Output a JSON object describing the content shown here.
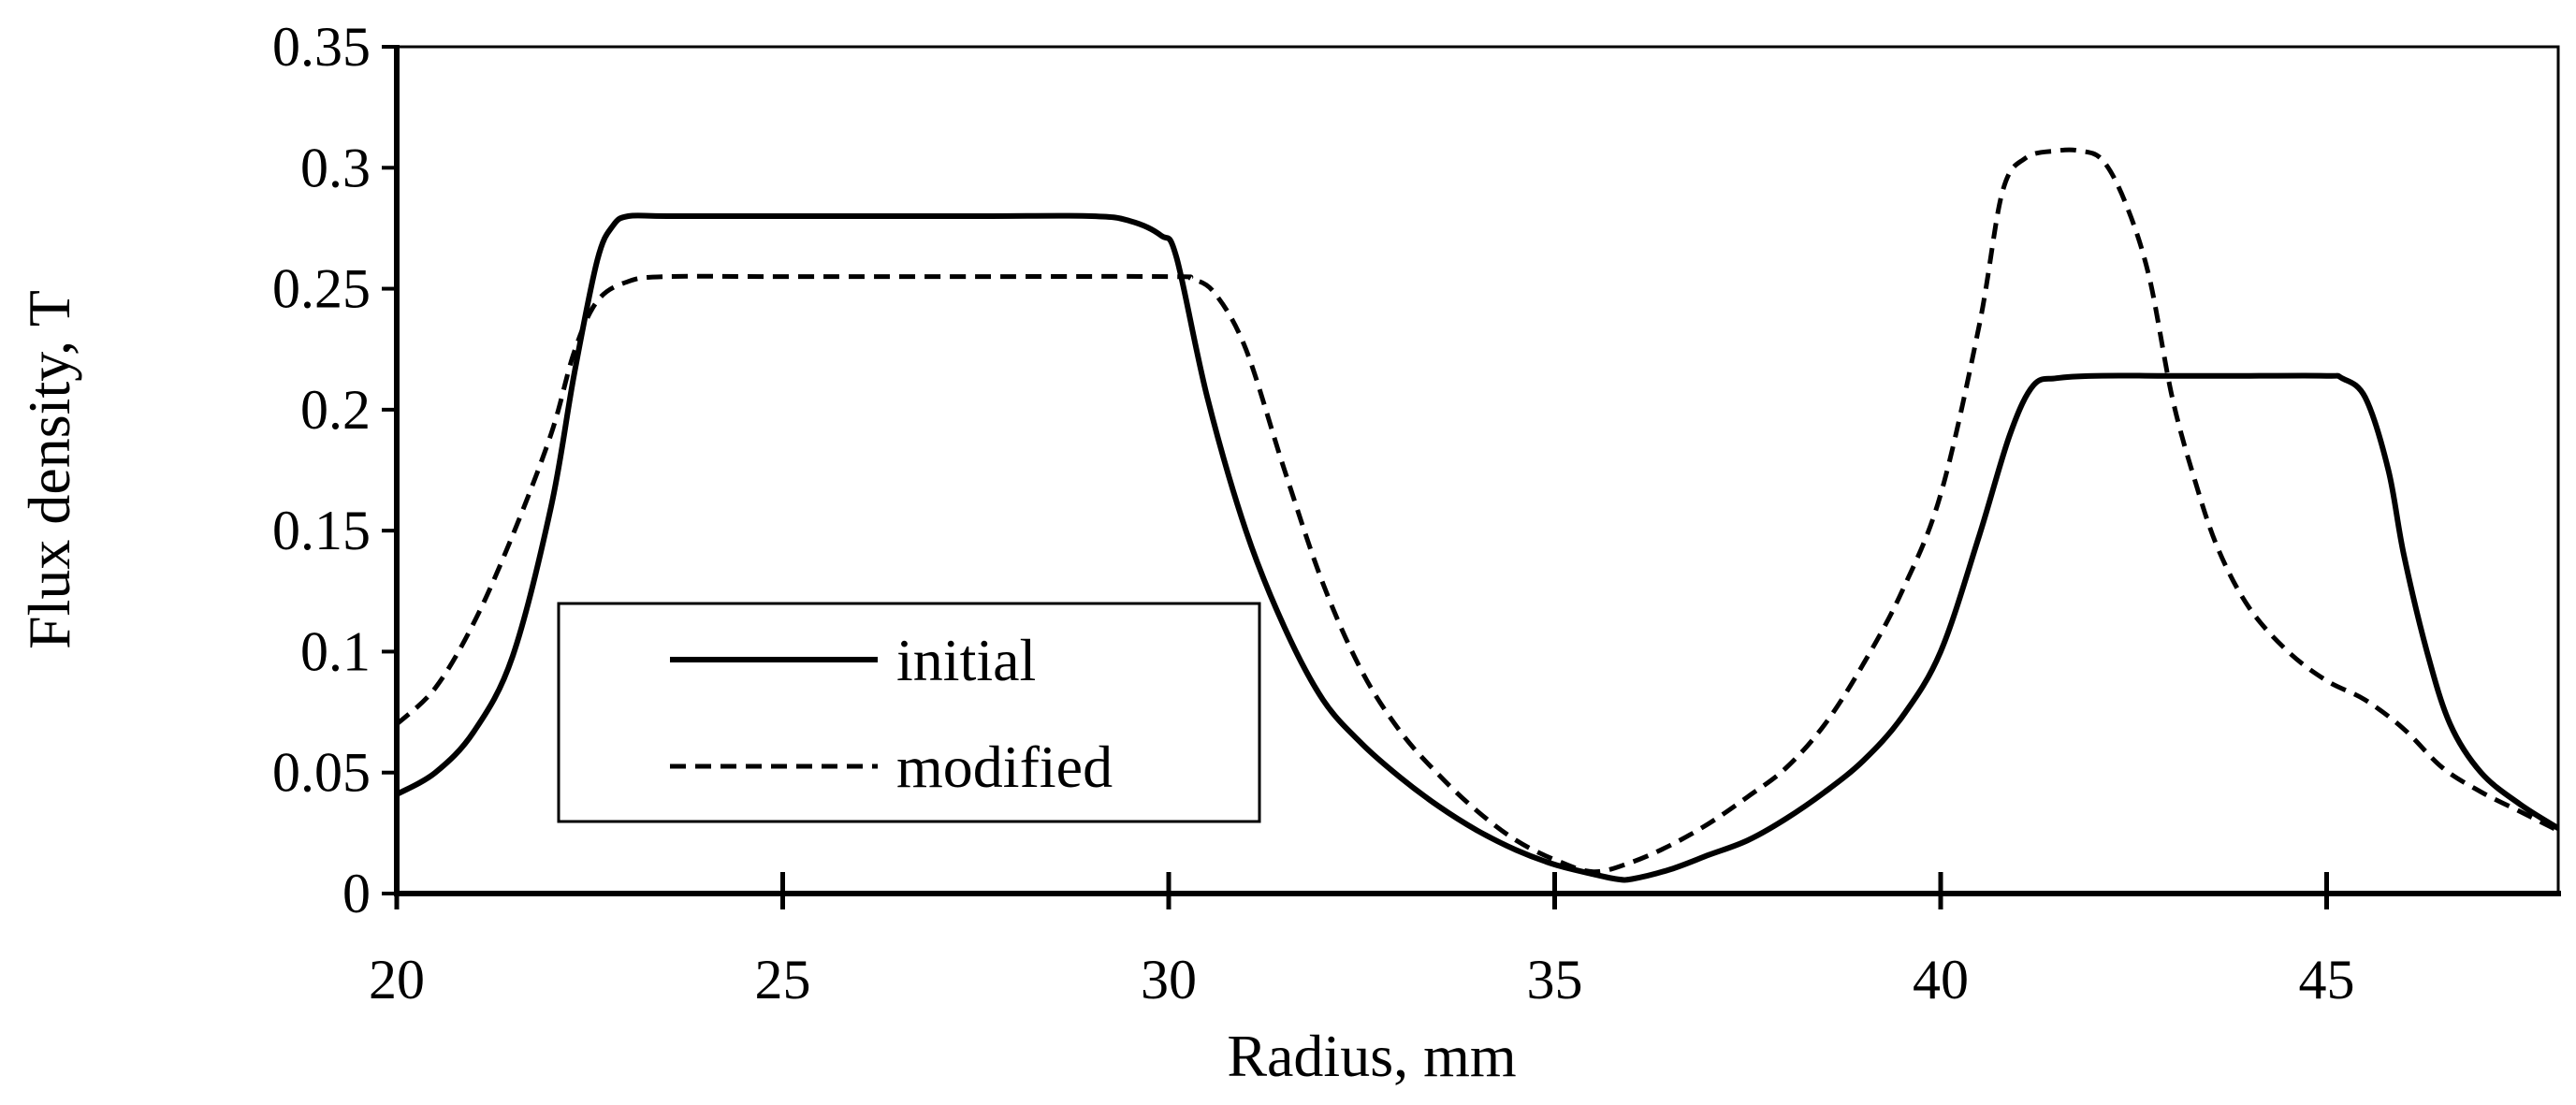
{
  "chart_data": {
    "type": "line",
    "title": "",
    "xlabel": "Radius, mm",
    "ylabel": "Flux density, T",
    "xlim": [
      20,
      48
    ],
    "ylim": [
      0,
      0.35
    ],
    "xticks": [
      20,
      25,
      30,
      35,
      40,
      45
    ],
    "xtick_labels": [
      "20",
      "25",
      "30",
      "35",
      "40",
      "45"
    ],
    "yticks": [
      0,
      0.05,
      0.1,
      0.15,
      0.2,
      0.25,
      0.3,
      0.35
    ],
    "ytick_labels": [
      "0",
      "0.05",
      "0.1",
      "0.15",
      "0.2",
      "0.25",
      "0.3",
      "0.35"
    ],
    "grid": false,
    "legend_position": "lower-left",
    "series": [
      {
        "name": "initial",
        "style": "solid",
        "color": "#000000",
        "x": [
          20,
          20.5,
          21,
          21.5,
          22,
          22.3,
          22.6,
          22.8,
          23,
          23.5,
          25,
          27.5,
          29,
          29.5,
          29.9,
          30.1,
          30.5,
          31,
          31.5,
          32,
          32.5,
          33,
          33.5,
          34,
          34.5,
          35,
          35.5,
          35.8,
          36,
          36.5,
          37,
          37.5,
          38,
          38.5,
          39,
          39.5,
          40,
          40.5,
          40.9,
          41.2,
          41.5,
          42,
          43,
          44,
          45,
          45.2,
          45.5,
          45.8,
          46,
          46.3,
          46.6,
          47,
          47.5,
          48
        ],
        "y": [
          0.041,
          0.05,
          0.067,
          0.098,
          0.16,
          0.215,
          0.262,
          0.276,
          0.28,
          0.28,
          0.28,
          0.28,
          0.28,
          0.278,
          0.272,
          0.263,
          0.205,
          0.15,
          0.11,
          0.08,
          0.062,
          0.048,
          0.036,
          0.026,
          0.018,
          0.012,
          0.008,
          0.006,
          0.006,
          0.01,
          0.016,
          0.022,
          0.031,
          0.042,
          0.055,
          0.073,
          0.1,
          0.148,
          0.19,
          0.21,
          0.213,
          0.214,
          0.214,
          0.214,
          0.214,
          0.213,
          0.205,
          0.175,
          0.14,
          0.1,
          0.07,
          0.05,
          0.037,
          0.027
        ]
      },
      {
        "name": "modified",
        "style": "dashed",
        "color": "#000000",
        "x": [
          20,
          20.5,
          21,
          21.5,
          22,
          22.3,
          22.6,
          23,
          23.5,
          25,
          27.5,
          30,
          30.3,
          30.6,
          31,
          31.5,
          32,
          32.5,
          33,
          33.5,
          34,
          34.5,
          35,
          35.5,
          36,
          36.5,
          37,
          37.5,
          38,
          38.5,
          39,
          39.5,
          40,
          40.5,
          40.8,
          41.1,
          41.5,
          41.8,
          42.1,
          42.4,
          42.7,
          43,
          43.3,
          43.6,
          44,
          44.5,
          45,
          45.5,
          46,
          46.5,
          47,
          47.5,
          48
        ],
        "y": [
          0.07,
          0.085,
          0.112,
          0.148,
          0.19,
          0.224,
          0.245,
          0.253,
          0.255,
          0.255,
          0.255,
          0.255,
          0.254,
          0.248,
          0.225,
          0.175,
          0.128,
          0.092,
          0.067,
          0.049,
          0.034,
          0.022,
          0.014,
          0.009,
          0.013,
          0.02,
          0.029,
          0.04,
          0.052,
          0.07,
          0.095,
          0.125,
          0.165,
          0.235,
          0.29,
          0.304,
          0.307,
          0.307,
          0.303,
          0.285,
          0.255,
          0.205,
          0.17,
          0.142,
          0.118,
          0.1,
          0.088,
          0.08,
          0.068,
          0.052,
          0.042,
          0.034,
          0.026
        ]
      }
    ]
  }
}
